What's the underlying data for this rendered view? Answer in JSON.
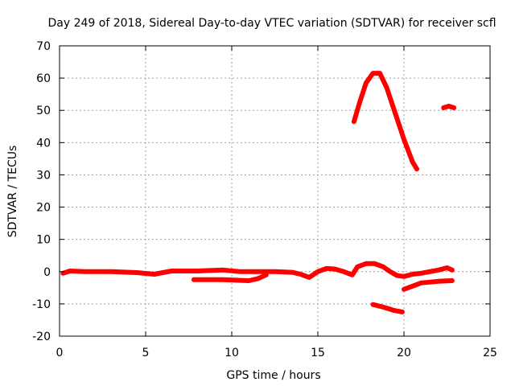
{
  "chart_data": {
    "type": "line",
    "title": "Day 249 of 2018, Sidereal Day-to-day VTEC variation (SDTVAR) for receiver scfl",
    "xlabel": "GPS time / hours",
    "ylabel": "SDTVAR / TECUs",
    "xlim": [
      0,
      25
    ],
    "ylim": [
      -20,
      70
    ],
    "xticks": [
      0,
      5,
      10,
      15,
      20,
      25
    ],
    "yticks": [
      -20,
      -10,
      0,
      10,
      20,
      30,
      40,
      50,
      60,
      70
    ],
    "grid": true,
    "legend": "none",
    "color": "#ff0000",
    "series": [
      {
        "name": "track-1",
        "x": [
          0.2,
          0.6,
          1.5,
          3.0,
          4.5,
          5.5,
          6.5,
          8.0,
          9.5,
          10.5,
          11.5,
          12.5,
          13.5,
          14.0,
          14.5,
          15.0,
          15.5,
          16.0,
          16.5,
          17.0,
          17.3,
          17.8,
          18.3,
          18.8,
          19.2,
          19.6,
          20.0,
          20.5
        ],
        "y": [
          -0.5,
          0.2,
          0.0,
          0.0,
          -0.3,
          -0.8,
          0.2,
          0.2,
          0.5,
          0.0,
          0.0,
          0.0,
          -0.2,
          -0.8,
          -1.8,
          0.0,
          1.0,
          0.8,
          0.0,
          -1.0,
          1.5,
          2.5,
          2.5,
          1.5,
          0.0,
          -1.2,
          -1.5,
          -0.8
        ]
      },
      {
        "name": "track-2",
        "x": [
          7.8,
          8.5,
          9.5,
          10.5,
          11.0,
          11.5,
          12.0
        ],
        "y": [
          -2.5,
          -2.5,
          -2.5,
          -2.7,
          -2.8,
          -2.2,
          -1.0
        ]
      },
      {
        "name": "track-3",
        "x": [
          17.1,
          17.4,
          17.8,
          18.2,
          18.6,
          19.0,
          19.5,
          20.0,
          20.5,
          20.75
        ],
        "y": [
          46.5,
          52.0,
          58.5,
          61.5,
          61.5,
          57.0,
          49.0,
          41.0,
          34.0,
          31.8
        ]
      },
      {
        "name": "track-4",
        "x": [
          20.0,
          20.5,
          21.0,
          22.0,
          22.8
        ],
        "y": [
          -5.5,
          -4.5,
          -3.5,
          -3.0,
          -2.8
        ]
      },
      {
        "name": "track-5",
        "x": [
          20.5,
          21.0,
          21.5,
          22.0,
          22.5,
          22.8
        ],
        "y": [
          -0.8,
          -0.5,
          0.0,
          0.5,
          1.2,
          0.5
        ]
      },
      {
        "name": "track-6",
        "x": [
          18.2,
          18.8,
          19.4,
          19.9
        ],
        "y": [
          -10.2,
          -11.0,
          -12.0,
          -12.5
        ]
      },
      {
        "name": "track-7",
        "x": [
          22.3,
          22.6,
          22.9
        ],
        "y": [
          50.8,
          51.3,
          50.8
        ]
      }
    ]
  }
}
